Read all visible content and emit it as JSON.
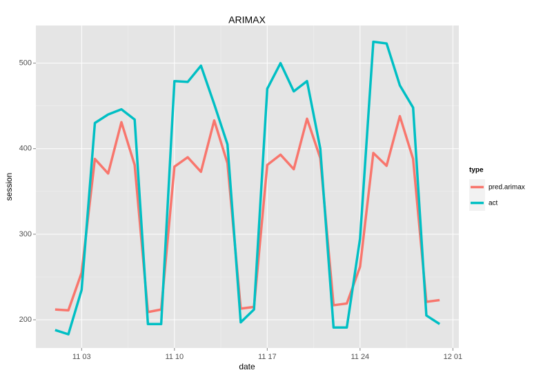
{
  "chart_data": {
    "type": "line",
    "title": "ARIMAX",
    "x_label": "date",
    "y_label": "session",
    "x": [
      1,
      2,
      3,
      4,
      5,
      6,
      7,
      8,
      9,
      10,
      11,
      12,
      13,
      14,
      15,
      16,
      17,
      18,
      19,
      20,
      21,
      22,
      23,
      24,
      25,
      26,
      27,
      28,
      29,
      30
    ],
    "xlim": [
      -0.45,
      31.45
    ],
    "xticks": [
      {
        "value": 3,
        "label": "11 03"
      },
      {
        "value": 10,
        "label": "11 10"
      },
      {
        "value": 17,
        "label": "11 17"
      },
      {
        "value": 24,
        "label": "11 24"
      },
      {
        "value": 31,
        "label": "12 01"
      }
    ],
    "ylim": [
      167,
      544
    ],
    "yticks": [
      200,
      300,
      400,
      500
    ],
    "grid": true,
    "legend_title": "type",
    "legend_position": "right",
    "series": [
      {
        "name": "pred.arimax",
        "color": "#F8766D",
        "values": [
          212,
          211,
          255,
          388,
          371,
          431,
          381,
          209,
          212,
          379,
          390,
          373,
          433,
          383,
          213,
          215,
          381,
          393,
          376,
          435,
          389,
          217,
          219,
          262,
          395,
          380,
          438,
          388,
          221,
          223
        ]
      },
      {
        "name": "act",
        "color": "#00BFC4",
        "values": [
          188,
          183,
          235,
          430,
          440,
          446,
          434,
          195,
          195,
          479,
          478,
          497,
          452,
          405,
          197,
          212,
          470,
          500,
          467,
          479,
          400,
          191,
          191,
          295,
          525,
          523,
          474,
          448,
          205,
          195
        ]
      }
    ]
  }
}
